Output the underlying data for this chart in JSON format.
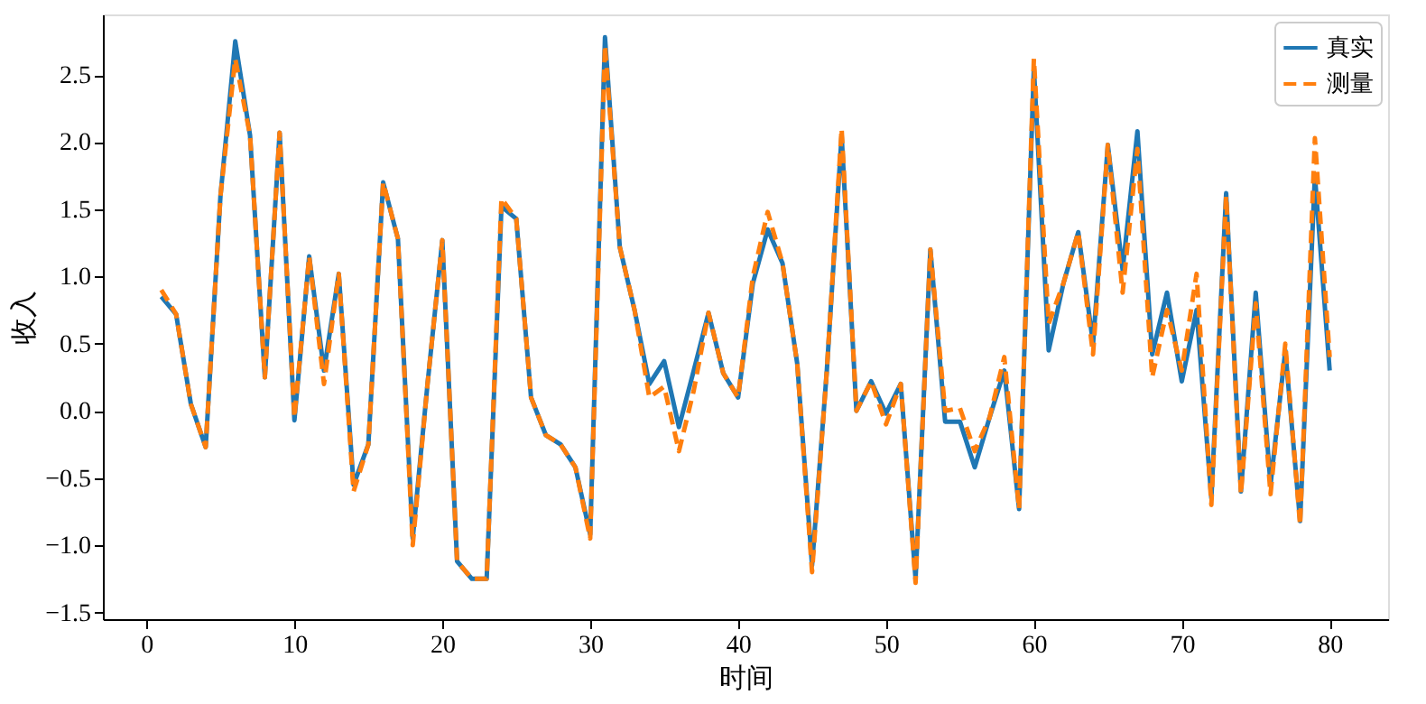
{
  "chart_data": {
    "type": "line",
    "xlabel": "时间",
    "ylabel": "收入",
    "x": [
      1,
      2,
      3,
      4,
      5,
      6,
      7,
      8,
      9,
      10,
      11,
      12,
      13,
      14,
      15,
      16,
      17,
      18,
      19,
      20,
      21,
      22,
      23,
      24,
      25,
      26,
      27,
      28,
      29,
      30,
      31,
      32,
      33,
      34,
      35,
      36,
      37,
      38,
      39,
      40,
      41,
      42,
      43,
      44,
      45,
      46,
      47,
      48,
      49,
      50,
      51,
      52,
      53,
      54,
      55,
      56,
      57,
      58,
      59,
      60,
      61,
      62,
      63,
      64,
      65,
      66,
      67,
      68,
      69,
      70,
      71,
      72,
      73,
      74,
      75,
      76,
      77,
      78,
      79,
      80
    ],
    "series": [
      {
        "name": "真实",
        "color": "#1f77b4",
        "line_style": "solid",
        "values": [
          0.85,
          0.72,
          0.05,
          -0.27,
          1.6,
          2.75,
          2.05,
          0.25,
          2.07,
          -0.07,
          1.15,
          0.3,
          1.02,
          -0.55,
          -0.25,
          1.7,
          1.28,
          -0.95,
          0.2,
          1.27,
          -1.12,
          -1.25,
          -1.25,
          1.52,
          1.43,
          0.1,
          -0.18,
          -0.25,
          -0.42,
          -0.92,
          2.78,
          1.22,
          0.75,
          0.2,
          0.37,
          -0.12,
          0.3,
          0.73,
          0.28,
          0.1,
          0.95,
          1.35,
          1.1,
          0.35,
          -1.15,
          0.3,
          2.05,
          0.0,
          0.22,
          -0.02,
          0.2,
          -1.25,
          1.2,
          -0.08,
          -0.08,
          -0.42,
          -0.05,
          0.3,
          -0.73,
          2.55,
          0.45,
          0.95,
          1.33,
          0.5,
          1.98,
          1.05,
          2.08,
          0.42,
          0.88,
          0.22,
          0.75,
          -0.65,
          1.62,
          -0.6,
          0.88,
          -0.55,
          0.45,
          -0.82,
          1.75,
          0.3
        ]
      },
      {
        "name": "测量",
        "color": "#ff7f0e",
        "line_style": "dashed",
        "values": [
          0.9,
          0.72,
          0.05,
          -0.27,
          1.6,
          2.62,
          2.05,
          0.25,
          2.07,
          -0.05,
          1.15,
          0.2,
          1.02,
          -0.6,
          -0.25,
          1.7,
          1.28,
          -1.0,
          0.2,
          1.27,
          -1.12,
          -1.25,
          -1.25,
          1.58,
          1.43,
          0.1,
          -0.18,
          -0.25,
          -0.42,
          -0.95,
          2.72,
          1.22,
          0.75,
          0.1,
          0.18,
          -0.3,
          0.15,
          0.73,
          0.28,
          0.1,
          1.0,
          1.48,
          1.1,
          0.35,
          -1.2,
          0.3,
          2.1,
          0.0,
          0.22,
          -0.1,
          0.2,
          -1.28,
          1.2,
          0.0,
          0.02,
          -0.3,
          -0.05,
          0.4,
          -0.73,
          2.62,
          0.65,
          0.95,
          1.33,
          0.42,
          1.98,
          0.88,
          1.95,
          0.25,
          0.75,
          0.3,
          1.02,
          -0.7,
          1.6,
          -0.62,
          0.8,
          -0.62,
          0.5,
          -0.85,
          2.03,
          0.4
        ]
      }
    ],
    "xlim": [
      -2.95,
      83.95
    ],
    "xticks": [
      0,
      10,
      20,
      30,
      40,
      50,
      60,
      70,
      80
    ],
    "ylim": [
      -1.55,
      2.95
    ],
    "yticks": [
      -1.5,
      {
        "value": -1,
        "label": "−1.0"
      },
      -0.5,
      {
        "value": 0,
        "label": "0.0"
      },
      0.5,
      {
        "value": 1,
        "label": "1.0"
      },
      1.5,
      {
        "value": 2,
        "label": "2.0"
      },
      2.5
    ],
    "grid": false,
    "legend": "top right"
  }
}
